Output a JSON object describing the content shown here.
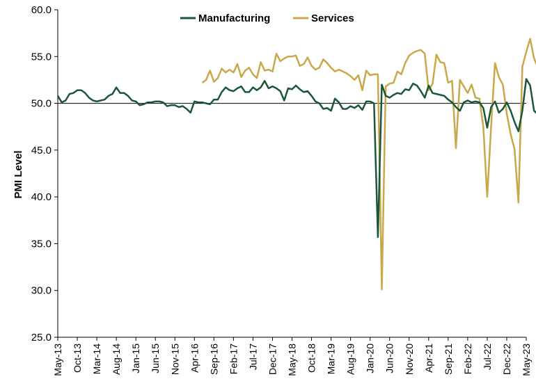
{
  "chart_data": {
    "type": "line",
    "title": "",
    "xlabel": "",
    "ylabel": "PMI Level",
    "ylim": [
      25.0,
      60.0
    ],
    "y_ticks": [
      "25.0",
      "30.0",
      "35.0",
      "40.0",
      "45.0",
      "50.0",
      "55.0",
      "60.0"
    ],
    "x_tick_labels": [
      "May-13",
      "Oct-13",
      "Mar-14",
      "Aug-14",
      "Jan-15",
      "Jun-15",
      "Nov-15",
      "Apr-16",
      "Sep-16",
      "Feb-17",
      "Jul-17",
      "Dec-17",
      "May-18",
      "Oct-18",
      "Mar-19",
      "Aug-19",
      "Jan-20",
      "Jun-20",
      "Nov-20",
      "Apr-21",
      "Sep-21",
      "Feb-22",
      "Jul-22",
      "Dec-22",
      "May-23"
    ],
    "x_range": [
      "May-13",
      "May-23"
    ],
    "reference_line": 50.0,
    "grid": false,
    "legend_position": "top-center",
    "series": [
      {
        "name": "Manufacturing",
        "color": "#1a5637",
        "start": "May-13",
        "values": [
          50.8,
          50.1,
          50.3,
          51.0,
          51.1,
          51.4,
          51.4,
          51.1,
          50.6,
          50.3,
          50.2,
          50.3,
          50.4,
          50.8,
          51.0,
          51.7,
          51.1,
          51.1,
          50.8,
          50.3,
          50.2,
          49.8,
          49.9,
          50.1,
          50.1,
          50.2,
          50.2,
          50.1,
          49.7,
          49.8,
          49.8,
          49.6,
          49.7,
          49.4,
          49.0,
          50.2,
          50.1,
          50.1,
          50.0,
          49.9,
          50.4,
          50.4,
          51.2,
          51.7,
          51.4,
          51.3,
          51.6,
          51.8,
          51.2,
          51.2,
          51.7,
          51.4,
          51.7,
          52.4,
          51.6,
          51.8,
          51.6,
          51.3,
          50.3,
          51.6,
          51.5,
          51.9,
          51.5,
          51.2,
          51.3,
          50.8,
          50.2,
          50.0,
          49.4,
          49.5,
          49.2,
          50.5,
          50.1,
          49.4,
          49.4,
          49.7,
          49.5,
          49.8,
          49.3,
          50.2,
          50.2,
          50.0,
          35.7,
          52.0,
          50.8,
          50.6,
          50.9,
          51.1,
          51.0,
          51.5,
          51.4,
          52.1,
          51.9,
          51.3,
          50.6,
          51.9,
          51.1,
          51.0,
          50.9,
          50.8,
          50.4,
          50.1,
          49.6,
          49.2,
          50.1,
          50.3,
          50.1,
          50.2,
          50.1,
          49.5,
          47.4,
          49.6,
          50.2,
          49.0,
          49.4,
          50.1,
          49.2,
          48.0,
          47.0,
          49.2,
          52.6,
          51.9,
          49.2,
          48.8
        ],
        "note_values": "monthly PMI readings, May-13 through May-23"
      },
      {
        "name": "Services",
        "color": "#c9a84c",
        "start": "Jun-16",
        "values": [
          52.2,
          52.5,
          53.5,
          52.3,
          52.7,
          53.7,
          53.3,
          53.6,
          53.3,
          54.2,
          52.8,
          53.5,
          53.8,
          53.1,
          52.7,
          54.4,
          53.5,
          53.6,
          53.4,
          55.3,
          54.5,
          54.8,
          55.0,
          55.0,
          55.1,
          54.0,
          54.2,
          54.9,
          54.0,
          53.6,
          53.8,
          54.7,
          54.3,
          53.8,
          53.4,
          53.6,
          53.4,
          53.2,
          52.9,
          52.5,
          53.0,
          51.4,
          53.5,
          53.0,
          53.1,
          53.1,
          30.1,
          51.8,
          52.1,
          52.2,
          53.4,
          53.1,
          54.3,
          55.1,
          55.4,
          55.6,
          55.7,
          55.3,
          51.4,
          52.1,
          55.2,
          54.4,
          54.3,
          52.2,
          52.4,
          45.2,
          52.5,
          51.8,
          51.1,
          52.0,
          50.6,
          50.5,
          47.5,
          40.0,
          47.5,
          54.3,
          52.8,
          52.0,
          48.9,
          46.7,
          45.1,
          39.4,
          53.9,
          55.5,
          56.9,
          54.8,
          53.8
        ],
        "note_values": "monthly PMI readings, Jun-16 through May-23"
      }
    ]
  }
}
